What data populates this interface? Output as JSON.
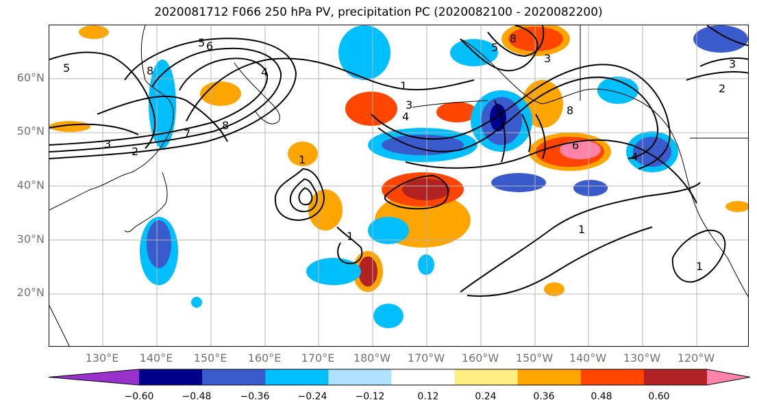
{
  "title": "2020081712 F066 250 hPa PV, precipitation PC (2020082100 - 2020082200)",
  "map": {
    "lat_labels": [
      "60°N",
      "50°N",
      "40°N",
      "30°N",
      "20°N"
    ],
    "lon_labels": [
      "130°E",
      "140°E",
      "150°E",
      "160°E",
      "170°E",
      "180°W",
      "170°W",
      "160°W",
      "150°W",
      "140°W",
      "130°W",
      "120°W"
    ],
    "contour_labels": [
      "5",
      "6",
      "5",
      "4",
      "8",
      "3",
      "2",
      "8",
      "7",
      "1",
      "4",
      "3",
      "1",
      "5",
      "8",
      "3",
      "8",
      "6",
      "2",
      "3",
      "1",
      "1",
      "4",
      "1"
    ],
    "colors": {
      "contour": "#000000",
      "grid": "#b4b4b4",
      "coast": "#000000"
    }
  },
  "colorbar": {
    "colors": [
      "#9932cc",
      "#00008b",
      "#3a5bcc",
      "#00bfff",
      "#b0e2ff",
      "#ffffff",
      "#ffee82",
      "#ffa500",
      "#ff4500",
      "#b22222",
      "#ff83ab"
    ],
    "ticks": [
      "−0.60",
      "−0.48",
      "−0.36",
      "−0.24",
      "−0.12",
      "0.12",
      "0.24",
      "0.36",
      "0.48",
      "0.60"
    ]
  }
}
